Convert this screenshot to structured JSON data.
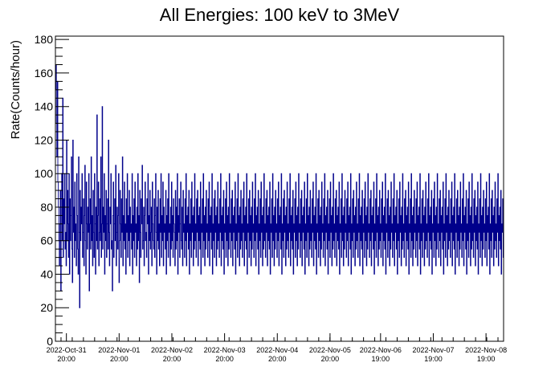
{
  "chart_data": {
    "type": "line",
    "title": "All Energies:  100 keV to 3MeV",
    "xlabel": "",
    "ylabel": "Rate(Counts/hour)",
    "ylim": [
      0,
      182
    ],
    "yticks": [
      0,
      20,
      40,
      60,
      80,
      100,
      120,
      140,
      160,
      180
    ],
    "xrange": [
      "2022-10-31 15:00",
      "2022-11-09 03:00"
    ],
    "xticks": [
      {
        "date": "2022-Oct-31",
        "time": "20:00"
      },
      {
        "date": "2022-Nov-01",
        "time": "20:00"
      },
      {
        "date": "2022-Nov-02",
        "time": "20:00"
      },
      {
        "date": "2022-Nov-03",
        "time": "20:00"
      },
      {
        "date": "2022-Nov-04",
        "time": "20:00"
      },
      {
        "date": "2022-Nov-05",
        "time": "20:00"
      },
      {
        "date": "2022-Nov-06",
        "time": "19:00"
      },
      {
        "date": "2022-Nov-07",
        "time": "19:00"
      },
      {
        "date": "2022-Nov-08",
        "time": "19:00"
      }
    ],
    "series_color": "#00008b",
    "grid": false,
    "legend": "none",
    "series": [
      {
        "values": [
          150,
          165,
          130,
          110,
          155,
          95,
          80,
          60,
          45,
          70,
          90,
          30,
          75,
          100,
          60,
          145,
          50,
          85,
          70,
          100,
          55,
          65,
          45,
          120,
          60,
          90,
          70,
          50,
          100,
          40,
          85,
          60,
          75,
          110,
          55,
          35,
          120,
          65,
          80,
          50,
          95,
          60,
          70,
          45,
          100,
          75,
          55,
          40,
          110,
          65,
          20,
          90,
          60,
          80,
          70,
          100,
          50,
          65,
          85,
          45,
          75,
          105,
          60,
          40,
          95,
          70,
          55,
          80,
          65,
          100,
          30,
          70,
          85,
          55,
          110,
          60,
          75,
          45,
          90,
          65,
          50,
          100,
          70,
          40,
          80,
          60,
          135,
          55,
          75,
          95,
          45,
          65,
          85,
          60,
          110,
          50,
          70,
          140,
          55,
          80,
          65,
          100,
          40,
          75,
          60,
          90,
          50,
          70,
          85,
          55,
          120,
          65,
          45,
          80,
          70,
          100,
          55,
          60,
          30,
          75,
          95,
          50,
          70,
          85,
          60,
          105,
          45,
          65,
          80,
          55,
          75,
          100,
          35,
          60,
          90,
          70,
          50,
          85,
          65,
          110,
          45,
          75,
          60,
          95,
          55,
          70,
          40,
          85,
          65,
          100,
          50,
          75,
          60,
          90,
          45,
          80,
          65,
          70,
          55,
          100,
          40,
          75,
          60,
          85,
          50,
          95,
          65,
          70,
          45,
          80,
          55,
          100,
          60,
          75,
          35,
          90,
          65,
          50,
          85,
          70,
          105,
          55,
          60,
          80,
          45,
          75,
          95,
          60,
          65,
          50,
          85,
          70,
          100,
          40,
          75,
          60,
          90,
          55,
          65,
          80,
          45,
          95,
          70,
          60,
          55,
          85,
          50,
          75,
          100,
          65,
          40,
          80,
          60,
          90,
          55,
          70,
          45,
          85,
          65,
          100,
          50,
          75,
          60,
          95,
          45,
          80,
          65,
          70,
          55,
          90,
          40,
          75,
          60,
          85,
          50,
          100,
          65,
          70,
          45,
          80,
          55,
          95,
          60,
          75,
          50,
          85,
          70,
          65,
          45,
          90,
          55,
          80,
          60,
          100,
          40,
          75,
          65,
          85,
          50,
          70,
          95,
          60,
          55,
          80,
          45,
          90,
          65,
          70,
          50,
          85,
          60,
          100,
          45,
          75,
          65,
          80,
          55,
          90,
          40,
          70,
          60,
          85,
          50,
          95,
          65,
          75,
          45,
          80,
          55,
          100,
          60,
          70,
          50,
          85,
          65,
          90,
          45,
          75,
          60,
          80,
          55,
          95,
          40,
          70,
          65,
          85,
          50,
          100,
          60,
          75,
          45,
          80,
          55,
          90,
          65,
          70,
          50,
          85,
          60,
          95,
          45,
          75,
          65,
          80,
          55,
          100,
          40,
          70,
          60,
          85,
          50,
          90,
          65,
          75,
          45,
          80,
          55,
          95,
          60,
          70,
          50,
          85,
          65,
          100,
          45,
          75,
          60,
          80,
          55,
          90,
          40,
          70,
          65,
          85,
          50,
          95,
          60,
          75,
          45,
          80,
          55,
          100,
          65,
          70,
          50,
          85,
          60,
          90,
          45,
          75,
          65,
          80,
          55,
          95,
          40,
          70,
          60,
          85,
          50,
          100,
          65,
          75,
          45,
          80,
          55,
          90,
          60,
          70,
          50,
          85,
          65,
          95,
          45,
          75,
          60,
          80,
          55,
          100,
          40,
          70,
          65,
          85,
          50,
          90,
          60,
          75,
          45,
          80,
          55,
          95,
          65,
          70,
          50,
          85,
          60,
          100,
          45,
          75,
          65,
          80,
          55,
          90,
          40,
          70,
          60,
          85,
          50,
          95,
          65,
          75,
          45,
          80,
          55,
          100,
          60,
          70,
          50,
          85,
          65,
          90,
          45,
          75,
          60,
          80,
          55,
          95,
          40,
          70,
          65,
          85,
          50,
          100,
          60,
          75,
          45,
          80,
          55,
          90,
          65,
          70,
          50,
          85,
          60,
          95,
          45,
          75,
          65,
          80,
          55,
          100,
          40,
          70,
          60,
          85,
          50,
          90,
          65,
          75,
          45,
          80,
          55,
          95,
          60,
          70,
          50,
          85,
          65,
          100,
          45,
          75,
          60,
          80,
          55,
          90,
          40,
          70,
          65,
          85,
          50,
          95,
          60,
          75,
          45,
          80,
          55,
          100,
          65,
          70,
          50,
          85,
          60,
          90,
          45,
          75,
          65,
          80,
          55,
          95,
          40,
          70,
          60,
          85,
          50,
          100,
          65,
          75,
          45,
          80,
          55,
          90,
          60,
          70,
          50,
          85,
          65,
          95,
          45,
          75,
          60,
          80,
          55,
          100,
          40,
          70,
          65,
          85,
          50,
          90,
          60,
          75,
          45,
          80,
          55,
          95,
          65,
          70,
          50,
          85,
          60,
          100,
          45,
          75,
          65,
          80,
          55,
          90,
          40,
          70,
          60,
          85,
          50,
          95,
          65,
          75,
          45,
          80,
          55,
          100,
          60,
          70,
          50,
          85,
          65,
          90,
          45,
          75,
          60,
          80,
          55,
          95,
          40,
          70,
          65,
          85,
          50,
          100,
          60,
          75,
          45,
          80,
          55,
          90,
          65,
          70,
          50,
          85,
          60,
          95,
          45,
          75,
          65,
          80,
          55,
          100,
          40,
          70,
          60,
          85,
          50,
          90,
          65,
          75,
          45,
          80,
          55,
          95,
          60,
          70,
          50,
          85,
          65,
          100,
          45,
          75,
          60,
          80,
          55,
          90,
          40,
          70,
          65,
          85,
          50,
          95,
          60,
          75,
          45,
          80,
          55,
          100,
          65,
          70,
          50,
          85,
          60,
          90,
          45,
          75,
          65,
          80,
          55,
          95,
          40,
          70,
          60,
          85,
          50,
          100,
          65,
          75,
          45,
          80,
          55,
          90,
          60,
          70,
          50,
          85,
          65,
          95,
          45,
          75,
          60,
          80,
          55,
          100,
          40,
          70,
          65,
          85,
          50,
          90,
          60,
          75,
          45,
          80,
          55,
          95,
          65,
          70,
          50,
          85,
          60,
          100,
          45,
          75,
          65,
          80,
          55,
          90,
          40,
          70,
          60,
          85,
          50,
          95,
          65,
          75,
          45,
          80,
          55,
          100,
          60,
          70,
          50,
          85,
          65,
          90,
          45,
          75,
          60,
          80,
          55,
          95,
          40,
          70,
          65,
          85,
          50,
          100,
          60,
          75,
          45,
          80,
          55,
          90,
          65,
          70,
          50,
          85,
          60,
          95,
          45,
          75,
          65,
          80,
          55,
          100,
          40,
          70,
          60,
          85,
          50,
          90,
          65,
          75,
          45,
          80,
          55,
          95,
          60,
          70,
          50,
          85,
          65,
          100,
          45,
          75,
          60,
          80,
          55,
          90,
          40,
          70,
          65,
          85,
          50,
          95,
          60,
          75,
          45,
          80,
          55,
          100,
          65,
          70,
          50,
          85,
          60,
          90,
          45,
          75,
          65,
          80,
          55,
          95,
          40,
          70,
          60,
          85,
          50,
          100,
          65,
          75,
          45,
          80,
          55,
          90,
          60,
          70,
          50,
          85,
          65,
          95,
          45,
          75,
          60,
          80,
          55,
          100,
          40,
          70,
          65,
          85,
          50,
          90,
          60,
          75,
          45,
          80,
          55,
          95,
          65,
          70,
          50,
          85,
          60,
          100,
          45,
          75,
          65,
          80,
          55,
          90,
          40,
          70,
          60,
          85,
          50,
          95,
          65,
          75,
          45,
          80,
          55,
          100,
          60,
          70,
          50,
          85,
          65,
          90,
          45,
          75,
          60,
          80,
          55,
          95,
          40,
          70,
          65,
          85,
          50,
          100,
          60,
          75,
          45,
          80,
          55,
          90,
          65,
          70,
          50,
          85,
          60,
          95,
          45,
          75,
          65,
          80,
          55,
          100,
          40,
          70,
          60,
          85,
          50,
          90,
          65,
          75,
          45,
          80,
          55,
          95,
          60,
          70,
          50,
          85,
          65,
          100,
          45,
          75,
          60,
          80,
          55,
          90,
          40,
          70,
          65,
          85,
          50
        ]
      }
    ]
  }
}
